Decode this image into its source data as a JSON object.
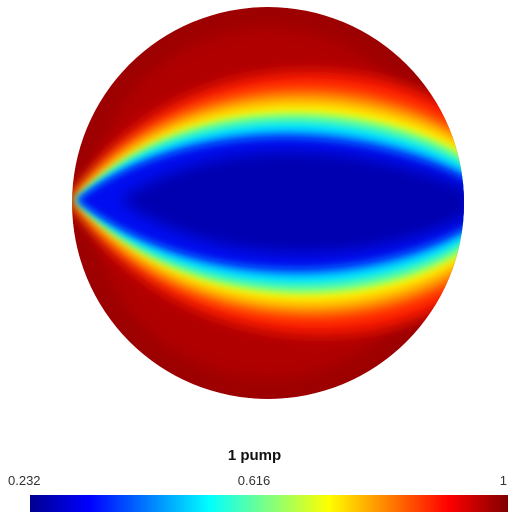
{
  "chart_data": {
    "type": "heatmap",
    "title": "1 pump",
    "colormap": "jet",
    "colorbar": {
      "min": 0.232,
      "max": 1,
      "ticks": [
        "0.232",
        "0.616",
        "1"
      ]
    },
    "field": {
      "shape": "circular domain",
      "pattern": "lens-shaped low-value region spanning the disk from left pointed tip to right edge, surrounded by high values near the rim"
    }
  }
}
